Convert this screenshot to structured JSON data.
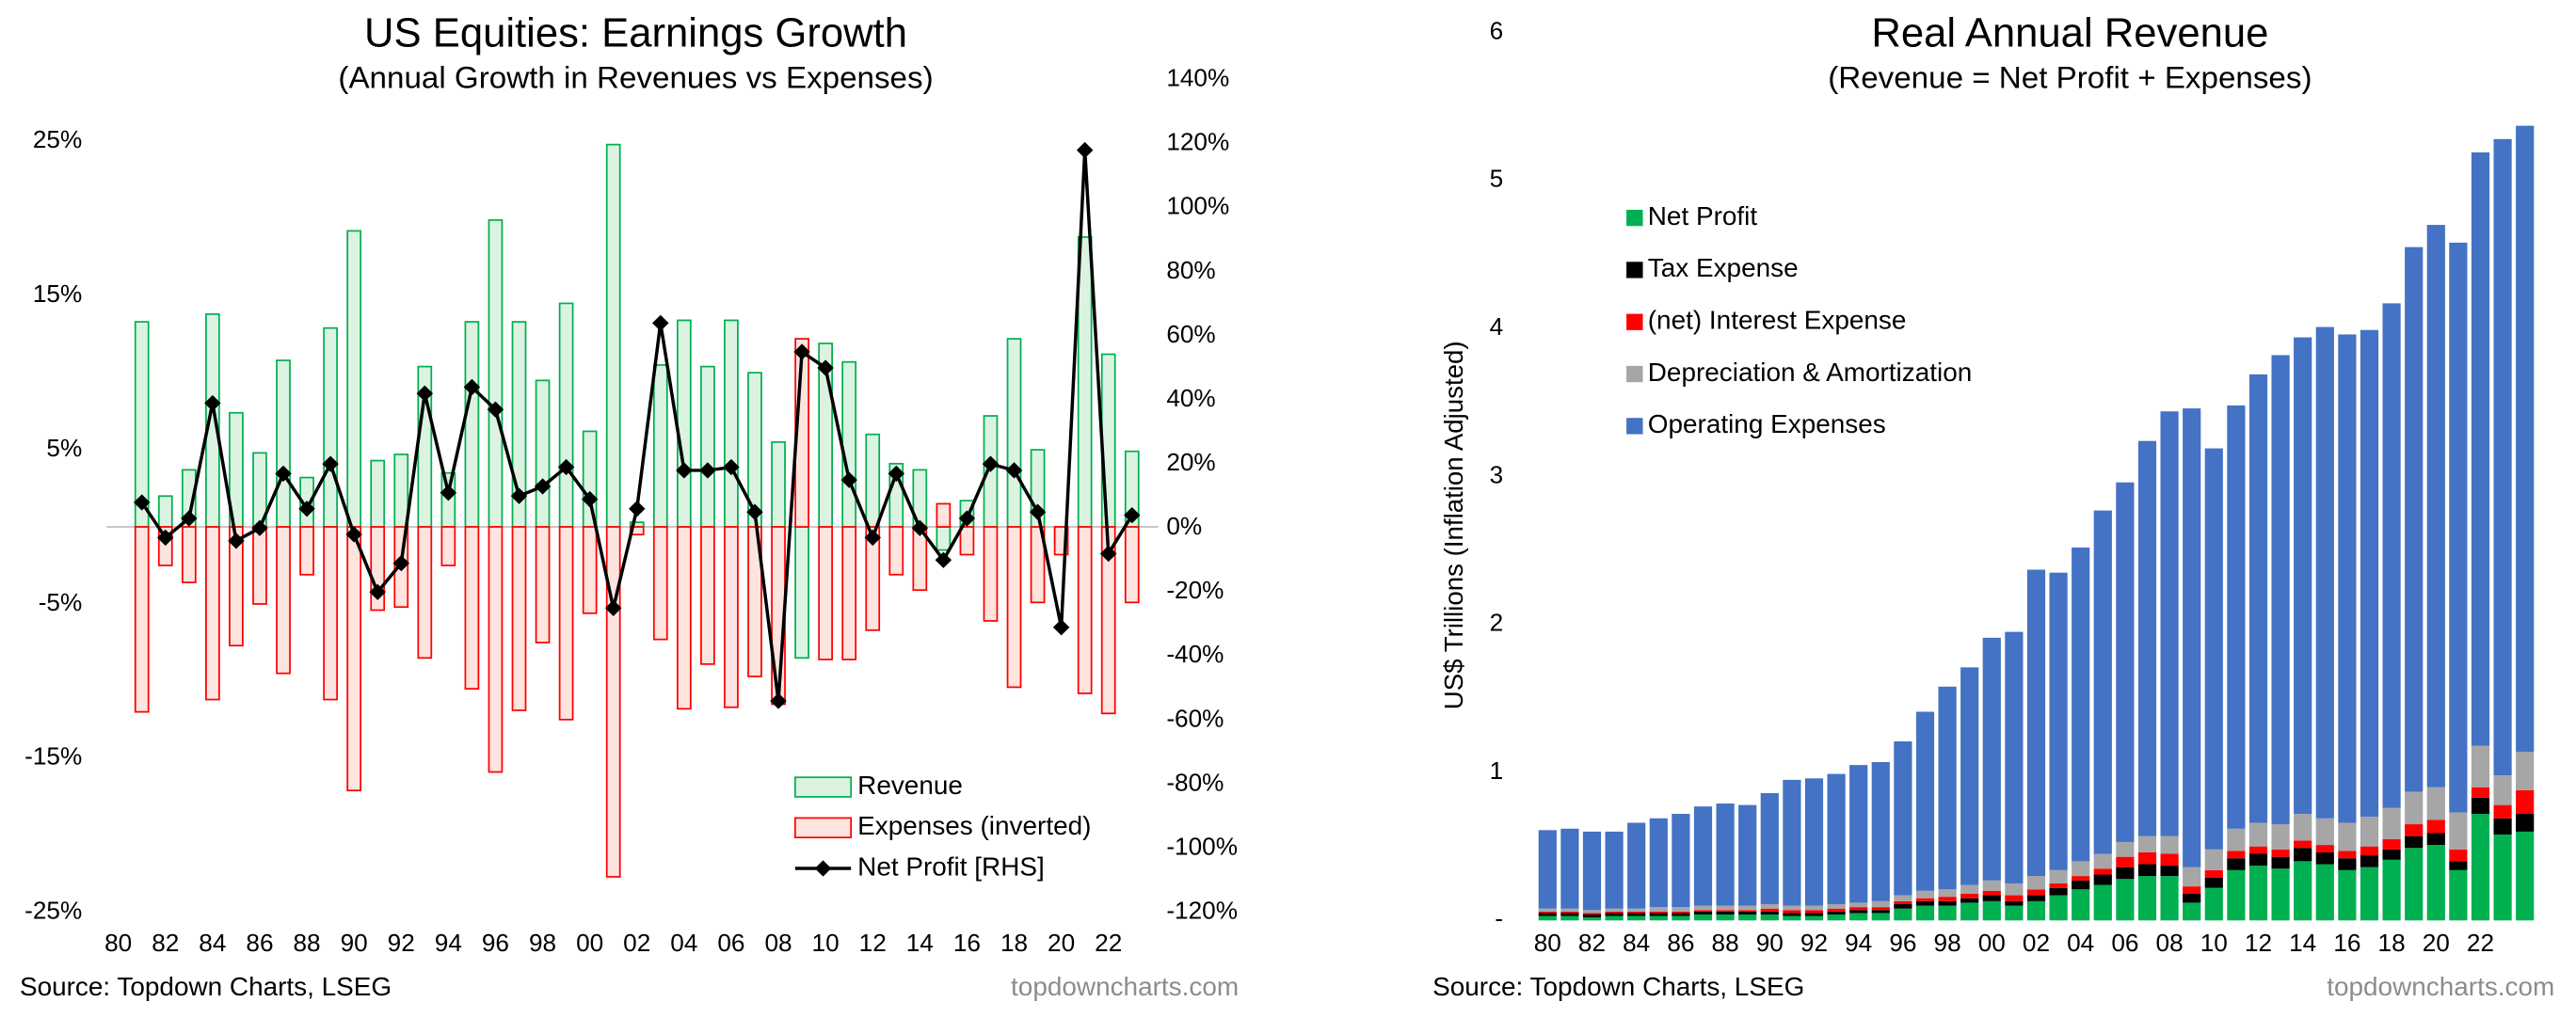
{
  "chart_data": [
    {
      "type": "bar",
      "title": "US Equities: Earnings Growth",
      "subtitle": "(Annual Growth in Revenues vs Expenses)",
      "source": "Source: Topdown Charts, LSEG",
      "watermark": "topdowncharts.com",
      "legend": "bottom-right",
      "categories": [
        "80",
        null,
        "82",
        null,
        "84",
        null,
        "86",
        null,
        "88",
        null,
        "90",
        null,
        "92",
        null,
        "94",
        null,
        "96",
        null,
        "98",
        null,
        "00",
        null,
        "02",
        null,
        "04",
        null,
        "06",
        null,
        "08",
        null,
        "10",
        null,
        "12",
        null,
        "14",
        null,
        "16",
        null,
        "18",
        null,
        "20",
        null,
        "22",
        null
      ],
      "ylim": [
        -25,
        25
      ],
      "yticks": [
        {
          "value": 25,
          "label": "25%"
        },
        {
          "value": 15,
          "label": "15%"
        },
        {
          "value": 5,
          "label": "5%"
        },
        {
          "value": -5,
          "label": "-5%"
        },
        {
          "value": -15,
          "label": "-15%"
        },
        {
          "value": -25,
          "label": "-25%"
        }
      ],
      "y2lim": [
        -120,
        140
      ],
      "y2ticks": [
        {
          "value": 140,
          "label": "140%"
        },
        {
          "value": 120,
          "label": "120%"
        },
        {
          "value": 100,
          "label": "100%"
        },
        {
          "value": 80,
          "label": "80%"
        },
        {
          "value": 60,
          "label": "60%"
        },
        {
          "value": 40,
          "label": "40%"
        },
        {
          "value": 20,
          "label": "20%"
        },
        {
          "value": 0,
          "label": "0%"
        },
        {
          "value": -20,
          "label": "-20%"
        },
        {
          "value": -40,
          "label": "-40%"
        },
        {
          "value": -60,
          "label": "-60%"
        },
        {
          "value": -80,
          "label": "-80%"
        },
        {
          "value": -100,
          "label": "-100%"
        },
        {
          "value": -120,
          "label": "-120%"
        }
      ],
      "series": [
        {
          "name": "Revenue",
          "type": "bar",
          "color": "#00b050",
          "fill": "#dcf3e2",
          "values": [
            null,
            13.3,
            2.0,
            3.7,
            13.8,
            7.4,
            4.8,
            10.8,
            3.2,
            12.9,
            19.2,
            4.3,
            4.7,
            10.4,
            3.5,
            13.3,
            19.9,
            13.3,
            9.5,
            14.5,
            6.2,
            24.8,
            0.3,
            10.5,
            13.4,
            10.4,
            13.4,
            10.0,
            5.5,
            -8.5,
            11.9,
            10.7,
            6.0,
            4.1,
            3.7,
            -1.5,
            1.7,
            7.2,
            12.2,
            5.0,
            -1.0,
            18.8,
            11.2,
            4.9
          ]
        },
        {
          "name": "Expenses (inverted)",
          "type": "bar",
          "color": "#ff0000",
          "fill": "#fde4de",
          "values": [
            null,
            -12.0,
            -2.5,
            -3.6,
            -11.2,
            -7.7,
            -5.0,
            -9.5,
            -3.1,
            -11.2,
            -17.1,
            -5.4,
            -5.2,
            -8.5,
            -2.5,
            -10.5,
            -15.9,
            -11.9,
            -7.5,
            -12.5,
            -5.6,
            -22.7,
            -0.5,
            -7.3,
            -11.8,
            -8.9,
            -11.7,
            -9.7,
            -11.5,
            12.2,
            -8.6,
            -8.6,
            -6.7,
            -3.1,
            -4.1,
            1.5,
            -1.8,
            -6.1,
            -10.4,
            -4.9,
            -1.8,
            -10.8,
            -12.1,
            -4.9
          ]
        },
        {
          "name": "Net Profit [RHS]",
          "type": "line",
          "axis": "y2",
          "color": "#000000",
          "values": [
            null,
            8,
            -3,
            3,
            39,
            -4,
            0,
            17,
            6,
            20,
            -2,
            -20,
            -11,
            42,
            11,
            44,
            37,
            10,
            13,
            19,
            9,
            -25,
            6,
            64,
            18,
            18,
            19,
            5,
            -54,
            55,
            50,
            15,
            -3,
            17,
            0,
            -10,
            3,
            20,
            18,
            5,
            -31,
            118,
            -8,
            4
          ]
        }
      ]
    },
    {
      "type": "stacked_bar",
      "title": "Real Annual Revenue",
      "subtitle": "(Revenue = Net Profit + Expenses)",
      "ylabel": "US$ Trillions (Inflation Adjusted)",
      "source": "Source: Topdown Charts, LSEG",
      "watermark": "topdowncharts.com",
      "legend": "top-left",
      "categories": [
        "80",
        null,
        "82",
        null,
        "84",
        null,
        "86",
        null,
        "88",
        null,
        "90",
        null,
        "92",
        null,
        "94",
        null,
        "96",
        null,
        "98",
        null,
        "00",
        null,
        "02",
        null,
        "04",
        null,
        "06",
        null,
        "08",
        null,
        "10",
        null,
        "12",
        null,
        "14",
        null,
        "16",
        null,
        "18",
        null,
        "20",
        null,
        "22",
        null,
        null
      ],
      "ylim": [
        0,
        6
      ],
      "yticks": [
        {
          "value": 0,
          "label": "-"
        },
        1,
        2,
        3,
        4,
        5,
        6
      ],
      "series": [
        {
          "name": "Net Profit",
          "color": "#00b050",
          "values": [
            0.03,
            0.03,
            0.02,
            0.03,
            0.03,
            0.03,
            0.03,
            0.04,
            0.04,
            0.04,
            0.04,
            0.03,
            0.03,
            0.04,
            0.05,
            0.05,
            0.08,
            0.1,
            0.1,
            0.12,
            0.13,
            0.1,
            0.13,
            0.17,
            0.21,
            0.24,
            0.28,
            0.3,
            0.3,
            0.12,
            0.22,
            0.34,
            0.37,
            0.35,
            0.4,
            0.38,
            0.34,
            0.36,
            0.41,
            0.49,
            0.51,
            0.34,
            0.72,
            0.58,
            0.6
          ]
        },
        {
          "name": "Tax Expense",
          "color": "#000000",
          "values": [
            0.02,
            0.02,
            0.02,
            0.02,
            0.02,
            0.02,
            0.02,
            0.02,
            0.02,
            0.02,
            0.02,
            0.02,
            0.02,
            0.02,
            0.02,
            0.02,
            0.03,
            0.03,
            0.03,
            0.03,
            0.04,
            0.03,
            0.04,
            0.05,
            0.06,
            0.07,
            0.08,
            0.08,
            0.07,
            0.06,
            0.07,
            0.08,
            0.08,
            0.08,
            0.09,
            0.08,
            0.08,
            0.08,
            0.07,
            0.08,
            0.08,
            0.06,
            0.11,
            0.11,
            0.12
          ]
        },
        {
          "name": "(net) Interest Expense",
          "color": "#ff0000",
          "values": [
            0.01,
            0.01,
            0.01,
            0.01,
            0.01,
            0.01,
            0.01,
            0.01,
            0.01,
            0.01,
            0.02,
            0.02,
            0.02,
            0.02,
            0.02,
            0.02,
            0.02,
            0.02,
            0.03,
            0.03,
            0.03,
            0.04,
            0.04,
            0.03,
            0.03,
            0.04,
            0.07,
            0.08,
            0.08,
            0.05,
            0.05,
            0.05,
            0.05,
            0.05,
            0.05,
            0.05,
            0.05,
            0.06,
            0.07,
            0.08,
            0.09,
            0.08,
            0.07,
            0.09,
            0.16
          ]
        },
        {
          "name": "Depreciation & Amortization",
          "color": "#a6a6a6",
          "values": [
            0.02,
            0.02,
            0.02,
            0.02,
            0.02,
            0.03,
            0.03,
            0.03,
            0.03,
            0.03,
            0.03,
            0.03,
            0.03,
            0.03,
            0.03,
            0.04,
            0.04,
            0.05,
            0.05,
            0.06,
            0.07,
            0.08,
            0.09,
            0.09,
            0.1,
            0.1,
            0.1,
            0.11,
            0.12,
            0.13,
            0.14,
            0.15,
            0.16,
            0.17,
            0.18,
            0.18,
            0.19,
            0.2,
            0.21,
            0.22,
            0.22,
            0.25,
            0.28,
            0.2,
            0.26
          ]
        },
        {
          "name": "Operating Expenses",
          "color": "#4472c4",
          "values": [
            0.53,
            0.54,
            0.53,
            0.52,
            0.58,
            0.6,
            0.63,
            0.67,
            0.69,
            0.68,
            0.75,
            0.85,
            0.86,
            0.88,
            0.93,
            0.94,
            1.04,
            1.21,
            1.37,
            1.47,
            1.64,
            1.7,
            2.07,
            2.01,
            2.12,
            2.32,
            2.43,
            2.67,
            2.87,
            3.1,
            2.71,
            2.86,
            3.03,
            3.17,
            3.22,
            3.32,
            3.3,
            3.29,
            3.41,
            3.68,
            3.8,
            3.85,
            4.01,
            4.3,
            4.23
          ]
        }
      ]
    }
  ]
}
